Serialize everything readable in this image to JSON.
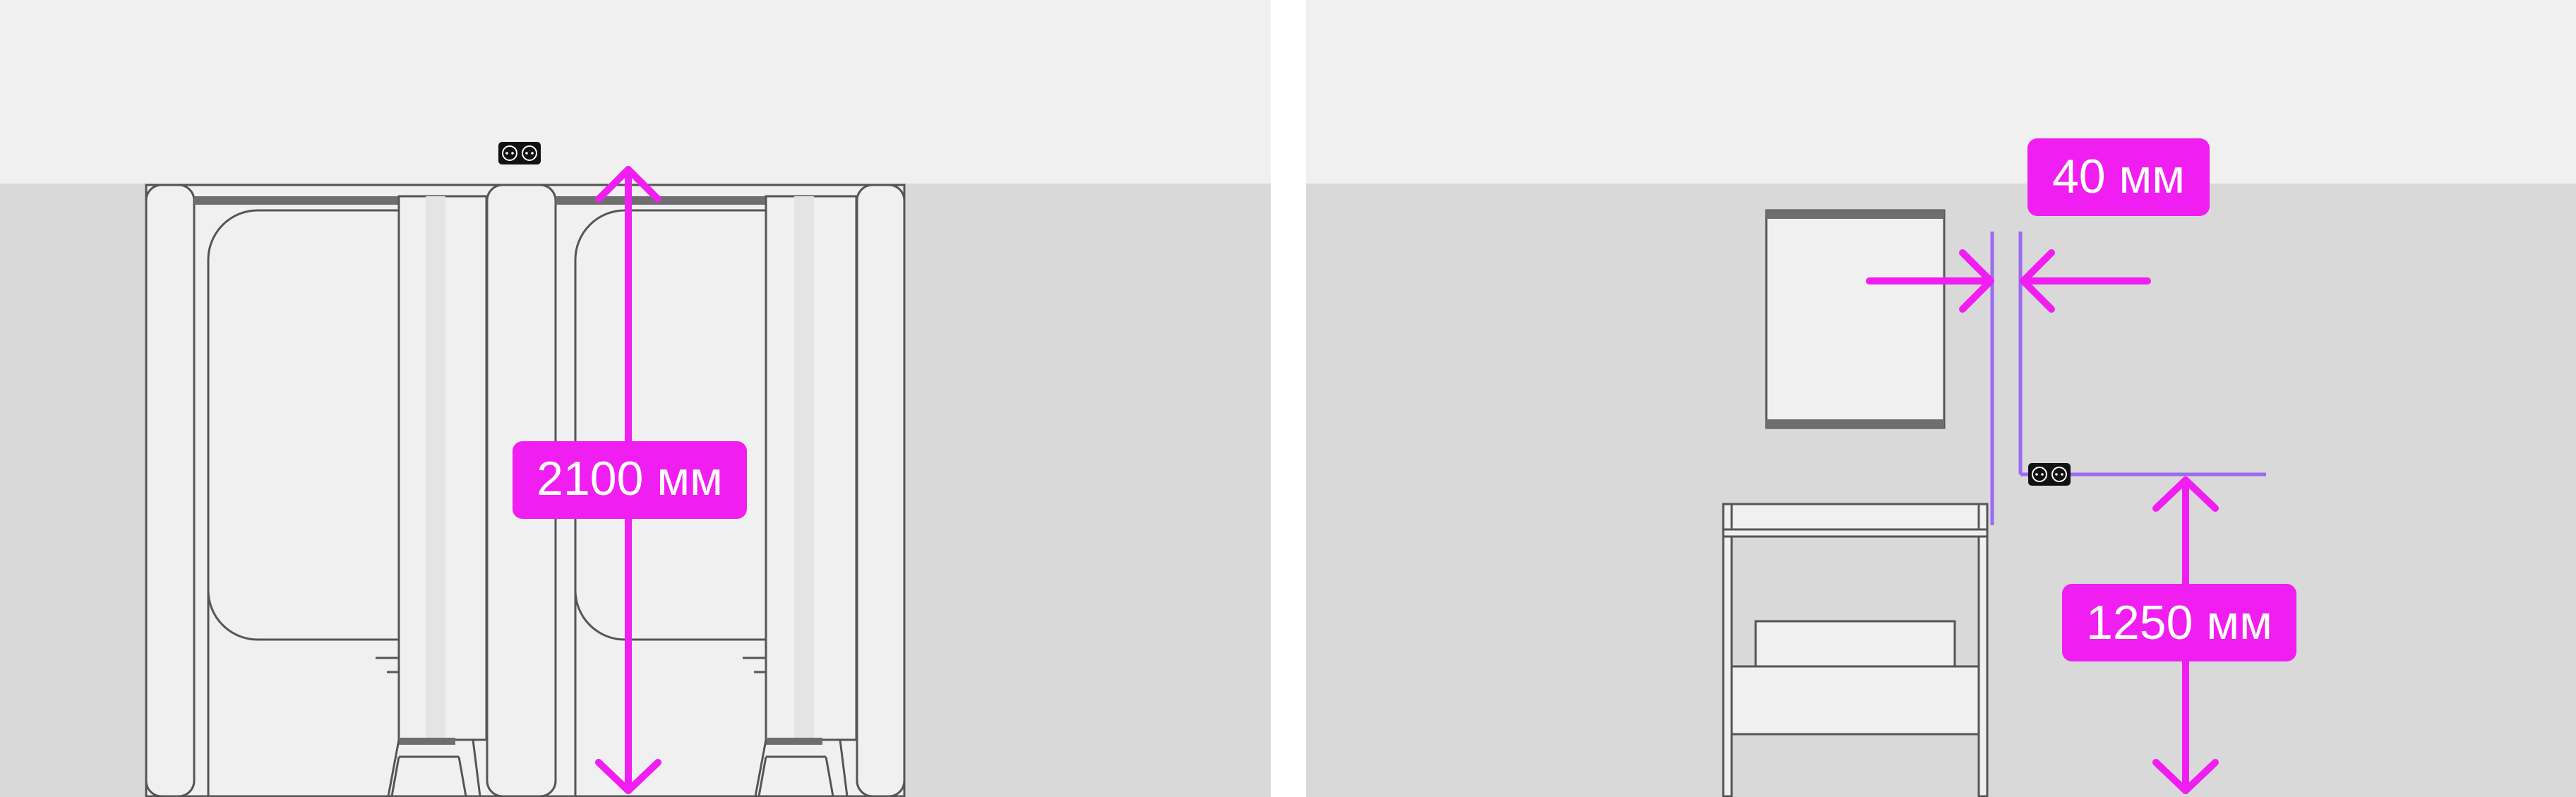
{
  "colors": {
    "accent": "#f01ef0",
    "guide": "#9b6cf0",
    "wall": "#d9d9d9",
    "ceiling": "#f0f0f0",
    "outline": "#555555",
    "fill_light": "#f0f0f0",
    "divider": "#ffffff"
  },
  "left_panel": {
    "height_label": "2100 мм",
    "socket_icon": "double-socket-icon"
  },
  "right_panel": {
    "gap_label": "40 мм",
    "socket_height_label": "1250 мм",
    "socket_icon": "double-socket-icon"
  }
}
